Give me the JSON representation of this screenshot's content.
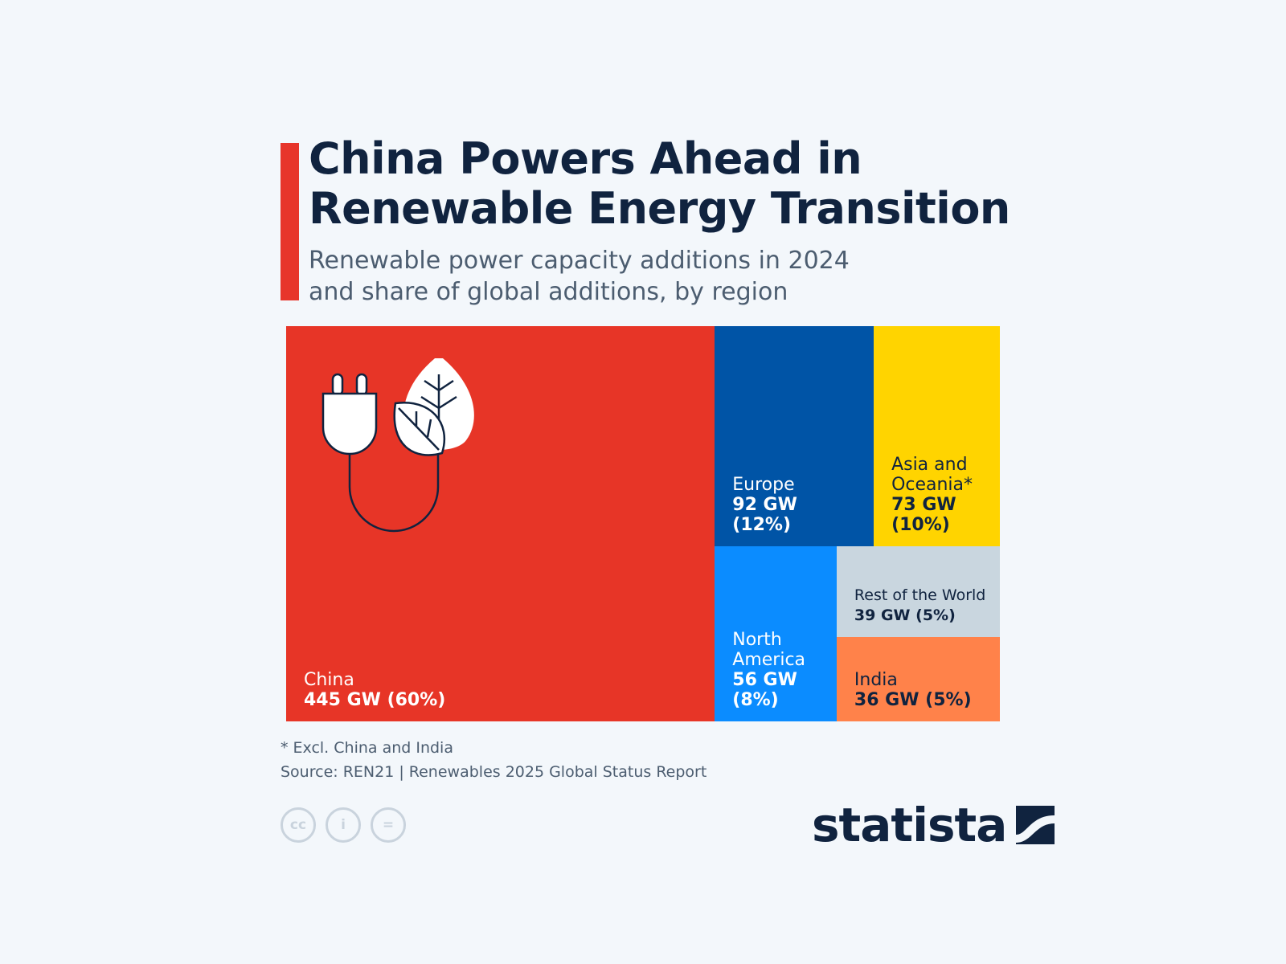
{
  "title": "China Powers Ahead in\nRenewable Energy Transition",
  "subtitle": "Renewable power capacity additions in 2024\nand share of global additions, by region",
  "colors": {
    "accent": "#e7352b",
    "title": "#10233f",
    "china": "#e73527",
    "europe": "#0054a6",
    "asia_oceania": "#ffd400",
    "north_america": "#0b8cff",
    "rest_of_world": "#c9d6df",
    "india": "#ff824a"
  },
  "chart_data": {
    "type": "treemap",
    "unit": "GW",
    "regions": [
      {
        "key": "china",
        "name": "China",
        "value": 445,
        "share": 60,
        "value_label": "445 GW (60%)"
      },
      {
        "key": "europe",
        "name": "Europe",
        "value": 92,
        "share": 12,
        "value_label": "92 GW\n(12%)"
      },
      {
        "key": "asia_oceania",
        "name": "Asia and\nOceania*",
        "value": 73,
        "share": 10,
        "value_label": "73 GW\n(10%)"
      },
      {
        "key": "north_america",
        "name": "North\nAmerica",
        "value": 56,
        "share": 8,
        "value_label": "56 GW\n(8%)"
      },
      {
        "key": "rest_of_world",
        "name": "Rest of the World",
        "value": 39,
        "share": 5,
        "value_label": "39 GW (5%)"
      },
      {
        "key": "india",
        "name": "India",
        "value": 36,
        "share": 5,
        "value_label": "36 GW (5%)"
      }
    ]
  },
  "icon": "plug-and-leaves-icon",
  "footnote": "* Excl. China and India",
  "source": "Source: REN21 | Renewables 2025 Global Status Report",
  "license": {
    "cc": "cc",
    "by": "i",
    "nd": "="
  },
  "brand": "statista"
}
